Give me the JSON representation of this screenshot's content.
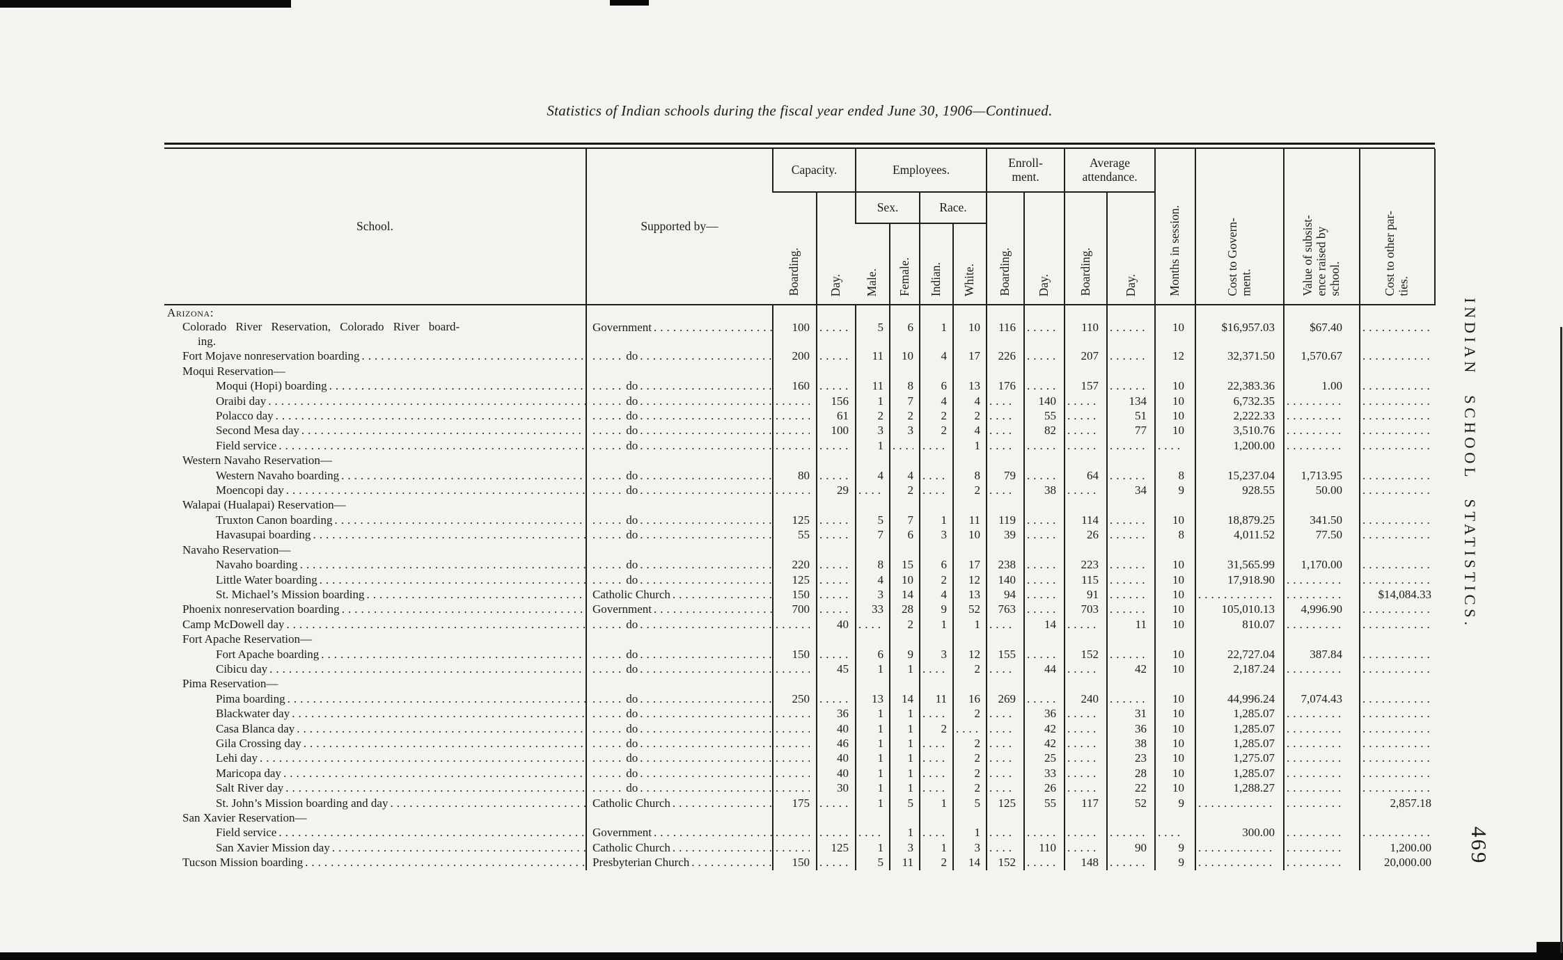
{
  "page": {
    "title": "Statistics of Indian schools during the fiscal year ended June 30, 1906—Continued.",
    "side_text": "INDIAN SCHOOL STATISTICS.",
    "page_number": "469"
  },
  "table": {
    "headers": {
      "school": "School.",
      "supported_by": "Supported by—",
      "capacity": "Capacity.",
      "employees": "Employees.",
      "sex": "Sex.",
      "race": "Race.",
      "enrollment": "Enroll-\nment.",
      "average_attendance": "Average\nattendance.",
      "boarding": "Boarding.",
      "day": "Day.",
      "male": "Male.",
      "female": "Female.",
      "indian": "Indian.",
      "white": "White.",
      "months_in_session": "Months in session.",
      "cost_to_government": "Cost  to  Govern-\nment.",
      "value_of_subsistence": "Value  of  subsist-\nence  raised  by\nschool.",
      "cost_to_other_parties": "Cost to other par-\nties."
    },
    "column_keys": [
      "capacity-boarding",
      "capacity-day",
      "employees-male",
      "employees-female",
      "race-indian",
      "race-white",
      "enrollment-boarding",
      "enrollment-day",
      "attendance-boarding",
      "attendance-day",
      "months-in-session",
      "cost-to-government",
      "value-of-subsistence",
      "cost-to-other-parties"
    ],
    "rows": [
      {
        "label": "Arizona:",
        "indent": 0,
        "section": true,
        "smallcaps": true
      },
      {
        "label": "Colorado River Reservation, Colorado River board-\ning.",
        "indent": 1,
        "wrap": true,
        "supported": "Government",
        "cells": [
          "100",
          "",
          "5",
          "6",
          "1",
          "10",
          "116",
          "",
          "110",
          "",
          "10",
          "$16,957.03",
          "$67.40",
          ""
        ]
      },
      {
        "label": "Fort Mojave nonreservation boarding",
        "indent": 1,
        "supported": "do",
        "cells": [
          "200",
          "",
          "11",
          "10",
          "4",
          "17",
          "226",
          "",
          "207",
          "",
          "12",
          "32,371.50",
          "1,570.67",
          ""
        ]
      },
      {
        "label": "Moqui Reservation—",
        "indent": 1,
        "section": true
      },
      {
        "label": "Moqui (Hopi) boarding",
        "indent": 2,
        "supported": "do",
        "cells": [
          "160",
          "",
          "11",
          "8",
          "6",
          "13",
          "176",
          "",
          "157",
          "",
          "10",
          "22,383.36",
          "1.00",
          ""
        ]
      },
      {
        "label": "Oraibi day",
        "indent": 2,
        "supported": "do",
        "cells": [
          "",
          "156",
          "1",
          "7",
          "4",
          "4",
          "",
          "140",
          "",
          "134",
          "10",
          "6,732.35",
          "",
          ""
        ]
      },
      {
        "label": "Polacco day",
        "indent": 2,
        "supported": "do",
        "cells": [
          "",
          "61",
          "2",
          "2",
          "2",
          "2",
          "",
          "55",
          "",
          "51",
          "10",
          "2,222.33",
          "",
          ""
        ]
      },
      {
        "label": "Second Mesa day",
        "indent": 2,
        "supported": "do",
        "cells": [
          "",
          "100",
          "3",
          "3",
          "2",
          "4",
          "",
          "82",
          "",
          "77",
          "10",
          "3,510.76",
          "",
          ""
        ]
      },
      {
        "label": "Field service",
        "indent": 2,
        "supported": "do",
        "cells": [
          "",
          "",
          "1",
          "",
          "",
          "1",
          "",
          "",
          "",
          "",
          "",
          "1,200.00",
          "",
          ""
        ]
      },
      {
        "label": "Western Navaho Reservation—",
        "indent": 1,
        "section": true
      },
      {
        "label": "Western Navaho boarding",
        "indent": 2,
        "supported": "do",
        "cells": [
          "80",
          "",
          "4",
          "4",
          "",
          "8",
          "79",
          "",
          "64",
          "",
          "8",
          "15,237.04",
          "1,713.95",
          ""
        ]
      },
      {
        "label": "Moencopi day",
        "indent": 2,
        "supported": "do",
        "cells": [
          "",
          "29",
          "",
          "2",
          "",
          "2",
          "",
          "38",
          "",
          "34",
          "9",
          "928.55",
          "50.00",
          ""
        ]
      },
      {
        "label": "Walapai (Hualapai) Reservation—",
        "indent": 1,
        "section": true
      },
      {
        "label": "Truxton Canon boarding",
        "indent": 2,
        "supported": "do",
        "cells": [
          "125",
          "",
          "5",
          "7",
          "1",
          "11",
          "119",
          "",
          "114",
          "",
          "10",
          "18,879.25",
          "341.50",
          ""
        ]
      },
      {
        "label": "Havasupai boarding",
        "indent": 2,
        "supported": "do",
        "cells": [
          "55",
          "",
          "7",
          "6",
          "3",
          "10",
          "39",
          "",
          "26",
          "",
          "8",
          "4,011.52",
          "77.50",
          ""
        ]
      },
      {
        "label": "Navaho Reservation—",
        "indent": 1,
        "section": true
      },
      {
        "label": "Navaho boarding",
        "indent": 2,
        "supported": "do",
        "cells": [
          "220",
          "",
          "8",
          "15",
          "6",
          "17",
          "238",
          "",
          "223",
          "",
          "10",
          "31,565.99",
          "1,170.00",
          ""
        ]
      },
      {
        "label": "Little Water boarding",
        "indent": 2,
        "supported": "do",
        "cells": [
          "125",
          "",
          "4",
          "10",
          "2",
          "12",
          "140",
          "",
          "115",
          "",
          "10",
          "17,918.90",
          "",
          ""
        ]
      },
      {
        "label": "St. Michael’s Mission boarding",
        "indent": 2,
        "supported": "Catholic Church",
        "cells": [
          "150",
          "",
          "3",
          "14",
          "4",
          "13",
          "94",
          "",
          "91",
          "",
          "10",
          "",
          "",
          "$14,084.33"
        ]
      },
      {
        "label": "Phoenix nonreservation boarding",
        "indent": 1,
        "supported": "Government",
        "cells": [
          "700",
          "",
          "33",
          "28",
          "9",
          "52",
          "763",
          "",
          "703",
          "",
          "10",
          "105,010.13",
          "4,996.90",
          ""
        ]
      },
      {
        "label": "Camp McDowell day",
        "indent": 1,
        "supported": "do",
        "cells": [
          "",
          "40",
          "",
          "2",
          "1",
          "1",
          "",
          "14",
          "",
          "11",
          "10",
          "810.07",
          "",
          ""
        ]
      },
      {
        "label": "Fort Apache Reservation—",
        "indent": 1,
        "section": true
      },
      {
        "label": "Fort Apache boarding",
        "indent": 2,
        "supported": "do",
        "cells": [
          "150",
          "",
          "6",
          "9",
          "3",
          "12",
          "155",
          "",
          "152",
          "",
          "10",
          "22,727.04",
          "387.84",
          ""
        ]
      },
      {
        "label": "Cibicu day",
        "indent": 2,
        "supported": "do",
        "cells": [
          "",
          "45",
          "1",
          "1",
          "",
          "2",
          "",
          "44",
          "",
          "42",
          "10",
          "2,187.24",
          "",
          ""
        ]
      },
      {
        "label": "Pima Reservation—",
        "indent": 1,
        "section": true
      },
      {
        "label": "Pima boarding",
        "indent": 2,
        "supported": "do",
        "cells": [
          "250",
          "",
          "13",
          "14",
          "11",
          "16",
          "269",
          "",
          "240",
          "",
          "10",
          "44,996.24",
          "7,074.43",
          ""
        ]
      },
      {
        "label": "Blackwater day",
        "indent": 2,
        "supported": "do",
        "cells": [
          "",
          "36",
          "1",
          "1",
          "",
          "2",
          "",
          "36",
          "",
          "31",
          "10",
          "1,285.07",
          "",
          ""
        ]
      },
      {
        "label": "Casa Blanca day",
        "indent": 2,
        "supported": "do",
        "cells": [
          "",
          "40",
          "1",
          "1",
          "2",
          "",
          "",
          "42",
          "",
          "36",
          "10",
          "1,285.07",
          "",
          ""
        ]
      },
      {
        "label": "Gila Crossing day",
        "indent": 2,
        "supported": "do",
        "cells": [
          "",
          "46",
          "1",
          "1",
          "",
          "2",
          "",
          "42",
          "",
          "38",
          "10",
          "1,285.07",
          "",
          ""
        ]
      },
      {
        "label": "Lehi day",
        "indent": 2,
        "supported": "do",
        "cells": [
          "",
          "40",
          "1",
          "1",
          "",
          "2",
          "",
          "25",
          "",
          "23",
          "10",
          "1,275.07",
          "",
          ""
        ]
      },
      {
        "label": "Maricopa day",
        "indent": 2,
        "supported": "do",
        "cells": [
          "",
          "40",
          "1",
          "1",
          "",
          "2",
          "",
          "33",
          "",
          "28",
          "10",
          "1,285.07",
          "",
          ""
        ]
      },
      {
        "label": "Salt River day",
        "indent": 2,
        "supported": "do",
        "cells": [
          "",
          "30",
          "1",
          "1",
          "",
          "2",
          "",
          "26",
          "",
          "22",
          "10",
          "1,288.27",
          "",
          ""
        ]
      },
      {
        "label": "St. John’s Mission boarding and day",
        "indent": 2,
        "supported": "Catholic Church",
        "cells": [
          "175",
          "",
          "1",
          "5",
          "1",
          "5",
          "125",
          "55",
          "117",
          "52",
          "9",
          "",
          "",
          "2,857.18"
        ]
      },
      {
        "label": "San Xavier Reservation—",
        "indent": 1,
        "section": true
      },
      {
        "label": "Field service",
        "indent": 2,
        "supported": "Government",
        "cells": [
          "",
          "",
          "",
          "1",
          "",
          "1",
          "",
          "",
          "",
          "",
          "",
          "300.00",
          "",
          ""
        ]
      },
      {
        "label": "San Xavier Mission day",
        "indent": 2,
        "supported": "Catholic Church",
        "cells": [
          "",
          "125",
          "1",
          "3",
          "1",
          "3",
          "",
          "110",
          "",
          "90",
          "9",
          "",
          "",
          "1,200.00"
        ]
      },
      {
        "label": "Tucson Mission boarding",
        "indent": 1,
        "supported": "Presbyterian Church",
        "cells": [
          "150",
          "",
          "5",
          "11",
          "2",
          "14",
          "152",
          "",
          "148",
          "",
          "9",
          "",
          "",
          "20,000.00"
        ]
      }
    ]
  }
}
